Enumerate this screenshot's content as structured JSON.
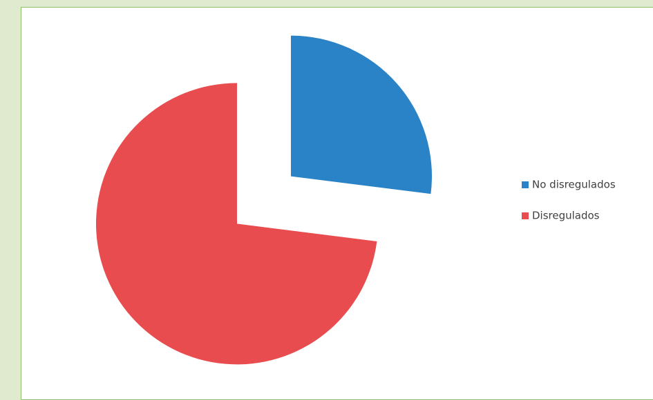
{
  "chart_data": {
    "type": "pie",
    "categories": [
      "No disregulados",
      "Disregulados"
    ],
    "values": [
      27,
      73
    ],
    "colors": [
      "#2a83c6",
      "#e84c4f"
    ],
    "legend": "right"
  }
}
